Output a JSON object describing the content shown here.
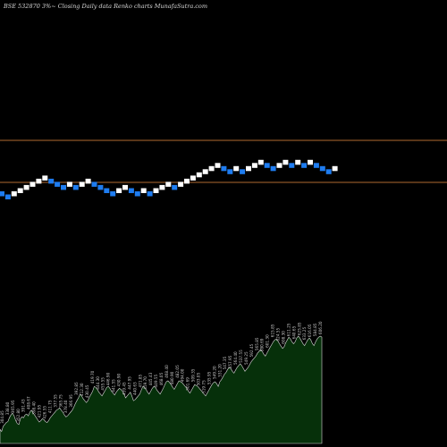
{
  "header": {
    "text": "BSE 532870  3%~  Closing Daily data  Renko  charts MunafaSutra.com"
  },
  "colors": {
    "up_brick": "#ffffff",
    "down_brick": "#1e7cf0",
    "level_line": "#b06a30",
    "volume_fill": "#06300a",
    "volume_stroke": "#d8d8d8",
    "volume_label": "#c8c8c8"
  },
  "chart_data": {
    "type": "renko",
    "brick_percent": 3,
    "levels": [
      1.0,
      0.0
    ],
    "bricks": [
      {
        "d": "down",
        "v": 0.0
      },
      {
        "d": "down",
        "v": -0.075
      },
      {
        "d": "up",
        "v": 0.0
      },
      {
        "d": "up",
        "v": 0.075
      },
      {
        "d": "up",
        "v": 0.15
      },
      {
        "d": "up",
        "v": 0.225
      },
      {
        "d": "up",
        "v": 0.3
      },
      {
        "d": "up",
        "v": 0.375
      },
      {
        "d": "down",
        "v": 0.3
      },
      {
        "d": "down",
        "v": 0.225
      },
      {
        "d": "down",
        "v": 0.15
      },
      {
        "d": "up",
        "v": 0.225
      },
      {
        "d": "down",
        "v": 0.15
      },
      {
        "d": "up",
        "v": 0.225
      },
      {
        "d": "up",
        "v": 0.3
      },
      {
        "d": "down",
        "v": 0.225
      },
      {
        "d": "down",
        "v": 0.15
      },
      {
        "d": "down",
        "v": 0.075
      },
      {
        "d": "down",
        "v": 0.0
      },
      {
        "d": "up",
        "v": 0.075
      },
      {
        "d": "up",
        "v": 0.15
      },
      {
        "d": "down",
        "v": 0.075
      },
      {
        "d": "down",
        "v": 0.0
      },
      {
        "d": "up",
        "v": 0.075
      },
      {
        "d": "down",
        "v": 0.0
      },
      {
        "d": "up",
        "v": 0.075
      },
      {
        "d": "up",
        "v": 0.15
      },
      {
        "d": "up",
        "v": 0.225
      },
      {
        "d": "down",
        "v": 0.15
      },
      {
        "d": "up",
        "v": 0.225
      },
      {
        "d": "up",
        "v": 0.3
      },
      {
        "d": "up",
        "v": 0.375
      },
      {
        "d": "up",
        "v": 0.45
      },
      {
        "d": "up",
        "v": 0.525
      },
      {
        "d": "up",
        "v": 0.6
      },
      {
        "d": "up",
        "v": 0.675
      },
      {
        "d": "down",
        "v": 0.6
      },
      {
        "d": "down",
        "v": 0.525
      },
      {
        "d": "up",
        "v": 0.6
      },
      {
        "d": "down",
        "v": 0.525
      },
      {
        "d": "up",
        "v": 0.6
      },
      {
        "d": "up",
        "v": 0.675
      },
      {
        "d": "up",
        "v": 0.75
      },
      {
        "d": "down",
        "v": 0.675
      },
      {
        "d": "down",
        "v": 0.6
      },
      {
        "d": "up",
        "v": 0.675
      },
      {
        "d": "up",
        "v": 0.75
      },
      {
        "d": "down",
        "v": 0.675
      },
      {
        "d": "up",
        "v": 0.75
      },
      {
        "d": "down",
        "v": 0.675
      },
      {
        "d": "up",
        "v": 0.75
      },
      {
        "d": "down",
        "v": 0.675
      },
      {
        "d": "down",
        "v": 0.6
      },
      {
        "d": "down",
        "v": 0.525
      },
      {
        "d": "up",
        "v": 0.6
      }
    ],
    "volume": [
      30,
      25,
      36,
      40,
      44,
      46,
      54,
      60,
      64,
      58,
      48,
      42,
      40,
      52,
      56,
      54,
      60,
      62,
      58,
      66,
      70,
      64,
      60,
      55,
      50,
      45,
      48,
      52,
      50,
      46,
      44,
      48,
      54,
      58,
      62,
      66,
      70,
      72,
      75,
      70,
      66,
      60,
      56,
      58,
      62,
      66,
      70,
      76,
      84,
      90,
      96,
      104,
      100,
      94,
      90,
      86,
      90,
      98,
      104,
      110,
      120,
      118,
      114,
      108,
      104,
      100,
      106,
      112,
      118,
      120,
      116,
      110,
      106,
      102,
      108,
      112,
      116,
      114,
      110,
      104,
      96,
      100,
      104,
      108,
      100,
      90,
      92,
      96,
      100,
      104,
      112,
      120,
      118,
      114,
      108,
      104,
      110,
      116,
      120,
      118,
      112,
      108,
      104,
      110,
      116,
      124,
      130,
      132,
      128,
      124,
      118,
      114,
      120,
      126,
      132,
      130,
      128,
      124,
      120,
      116,
      110,
      106,
      112,
      118,
      124,
      122,
      120,
      116,
      112,
      108,
      104,
      100,
      106,
      112,
      118,
      124,
      128,
      130,
      126,
      120,
      130,
      134,
      140,
      146,
      150,
      156,
      160,
      158,
      152,
      148,
      154,
      160,
      164,
      168,
      164,
      158,
      152,
      156,
      160,
      166,
      172,
      176,
      180,
      184,
      190,
      194,
      198,
      194,
      188,
      184,
      190,
      196,
      202,
      208,
      214,
      218,
      220,
      216,
      210,
      205,
      200,
      204,
      212,
      218,
      224,
      220,
      214,
      210,
      214,
      222,
      226,
      222,
      216,
      210,
      206,
      212,
      218,
      222,
      218,
      210,
      206,
      214,
      220,
      224,
      226,
      224
    ],
    "volume_labels": [
      "304.85",
      "338.80",
      "365.95",
      "352.80",
      "391.43",
      "408.67",
      "398.40",
      "421.95",
      "426.55",
      "411.75",
      "377.55",
      "365.75",
      "378.40",
      "366.95",
      "392.85",
      "412.30",
      "430.45",
      "419.70",
      "444.30",
      "455.55",
      "446.90",
      "441.55",
      "430.90",
      "459.45",
      "447.95",
      "440.63",
      "471.85",
      "459.70",
      "445.43",
      "449.55",
      "468.05",
      "468.40",
      "480.90",
      "482.05",
      "494.00",
      "501.69",
      "509.35",
      "503.05",
      "519.75",
      "535.95",
      "549.20",
      "531.20",
      "547.35",
      "557.95",
      "564.40",
      "537.55",
      "549.25",
      "592.45",
      "565.85",
      "580.69",
      "601.30",
      "615.85",
      "624.55",
      "608.30",
      "611.25",
      "640.65",
      "625.85",
      "633.25",
      "616.05",
      "584.85",
      "606.20"
    ]
  }
}
